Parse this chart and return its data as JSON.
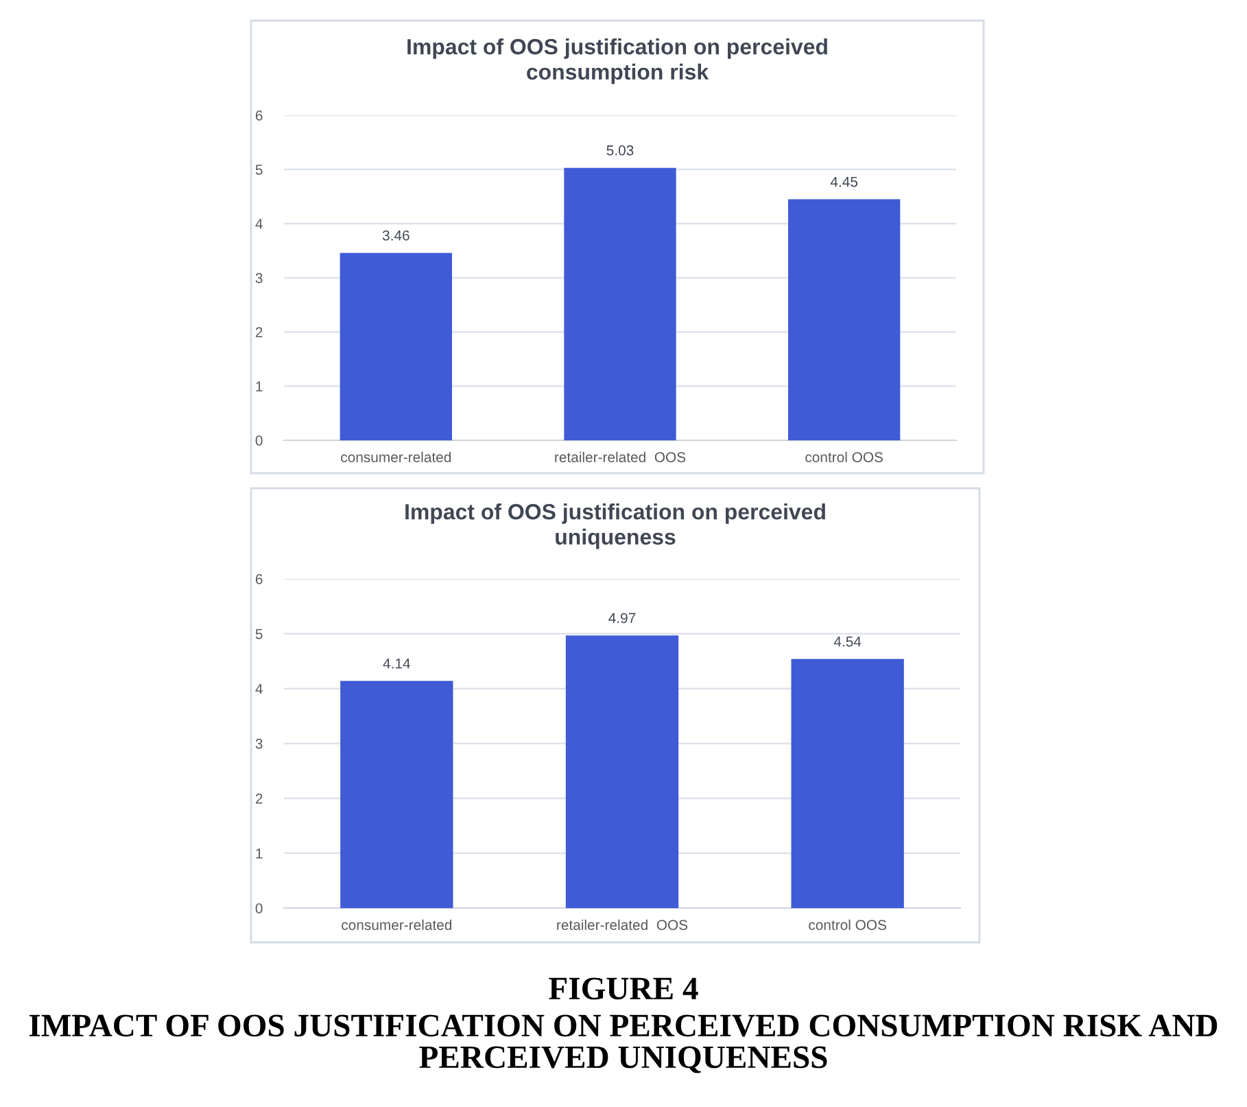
{
  "chart_data": [
    {
      "type": "bar",
      "title": "Impact of OOS justification on perceived consumption risk",
      "categories": [
        "consumer-related",
        "retailer-related  OOS",
        "control OOS"
      ],
      "values": [
        3.46,
        5.03,
        4.45
      ],
      "color": "#3f5bd5",
      "ylim": [
        0,
        6
      ],
      "yticks": [
        0,
        1,
        2,
        3,
        4,
        5,
        6
      ],
      "grid": "y",
      "data_labels": true
    },
    {
      "type": "bar",
      "title": "Impact of OOS justification on perceived uniqueness",
      "categories": [
        "consumer-related",
        "retailer-related  OOS",
        "control OOS"
      ],
      "values": [
        4.14,
        4.97,
        4.54
      ],
      "color": "#3f5bd5",
      "ylim": [
        0,
        6
      ],
      "yticks": [
        0,
        1,
        2,
        3,
        4,
        5,
        6
      ],
      "grid": "y",
      "data_labels": true,
      "annotations": [
        "FIGURE 4",
        "IMPACT OF OOS JUSTIFICATION ON PERCEIVED CONSUMPTION RISK AND PERCEIVED UNIQUENESS"
      ]
    }
  ]
}
